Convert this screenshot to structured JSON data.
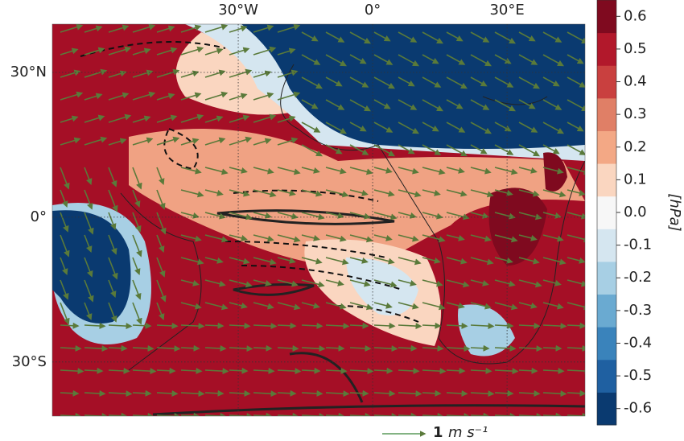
{
  "chart_data": {
    "type": "map",
    "xlim": [
      -71.5,
      47.4
    ],
    "ylim": [
      -41.2,
      40
    ],
    "xticks": [
      {
        "value": -30,
        "label": "30°W"
      },
      {
        "value": 0,
        "label": "0°"
      },
      {
        "value": 30,
        "label": "30°E"
      }
    ],
    "yticks": [
      {
        "value": 30,
        "label": "30°N"
      },
      {
        "value": 0,
        "label": "0°"
      },
      {
        "value": -30,
        "label": "30°S"
      }
    ],
    "grid": true,
    "colorbar": {
      "label": "[hPa]",
      "lim": [
        -0.65,
        0.65
      ],
      "ticks": [
        -0.6,
        -0.5,
        -0.4,
        -0.3,
        -0.2,
        -0.1,
        {
          "value": 0,
          "label": "0.0"
        },
        0.1,
        0.2,
        0.3,
        0.4,
        0.5,
        0.6
      ],
      "colors": [
        "#0a3a70",
        "#1f60a1",
        "#3a83bb",
        "#6aaad1",
        "#a7cfe4",
        "#d5e6f0",
        "#f7f7f7",
        "#fad6c0",
        "#f3a885",
        "#e07f66",
        "#c9403f",
        "#b2182b",
        "#7f0a1f"
      ]
    },
    "quiver_key": {
      "value_text": "1",
      "unit": "m s⁻¹"
    }
  }
}
